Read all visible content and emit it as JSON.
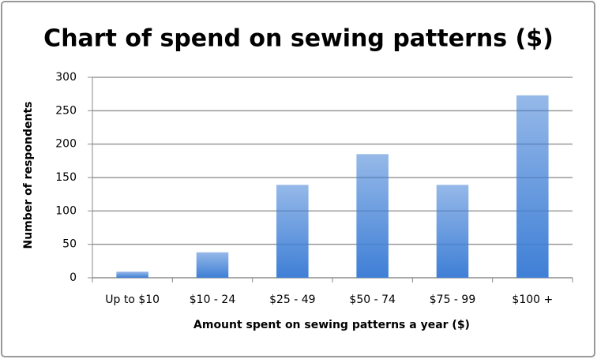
{
  "chart_data": {
    "type": "bar",
    "title": "Chart of spend on sewing patterns ($)",
    "x_label": "Amount spent on sewing patterns a year ($)",
    "y_label": "Number of respondents",
    "categories": [
      "Up to $10",
      "$10 - 24",
      "$25 - 49",
      "$50 - 74",
      "$75 - 99",
      "$100 +"
    ],
    "values": [
      9,
      38,
      139,
      185,
      139,
      273
    ],
    "color": "#3f7fd6",
    "ylim": [
      0,
      300
    ],
    "yticks": [
      0,
      50,
      100,
      150,
      200,
      250,
      300
    ],
    "grid": true
  }
}
